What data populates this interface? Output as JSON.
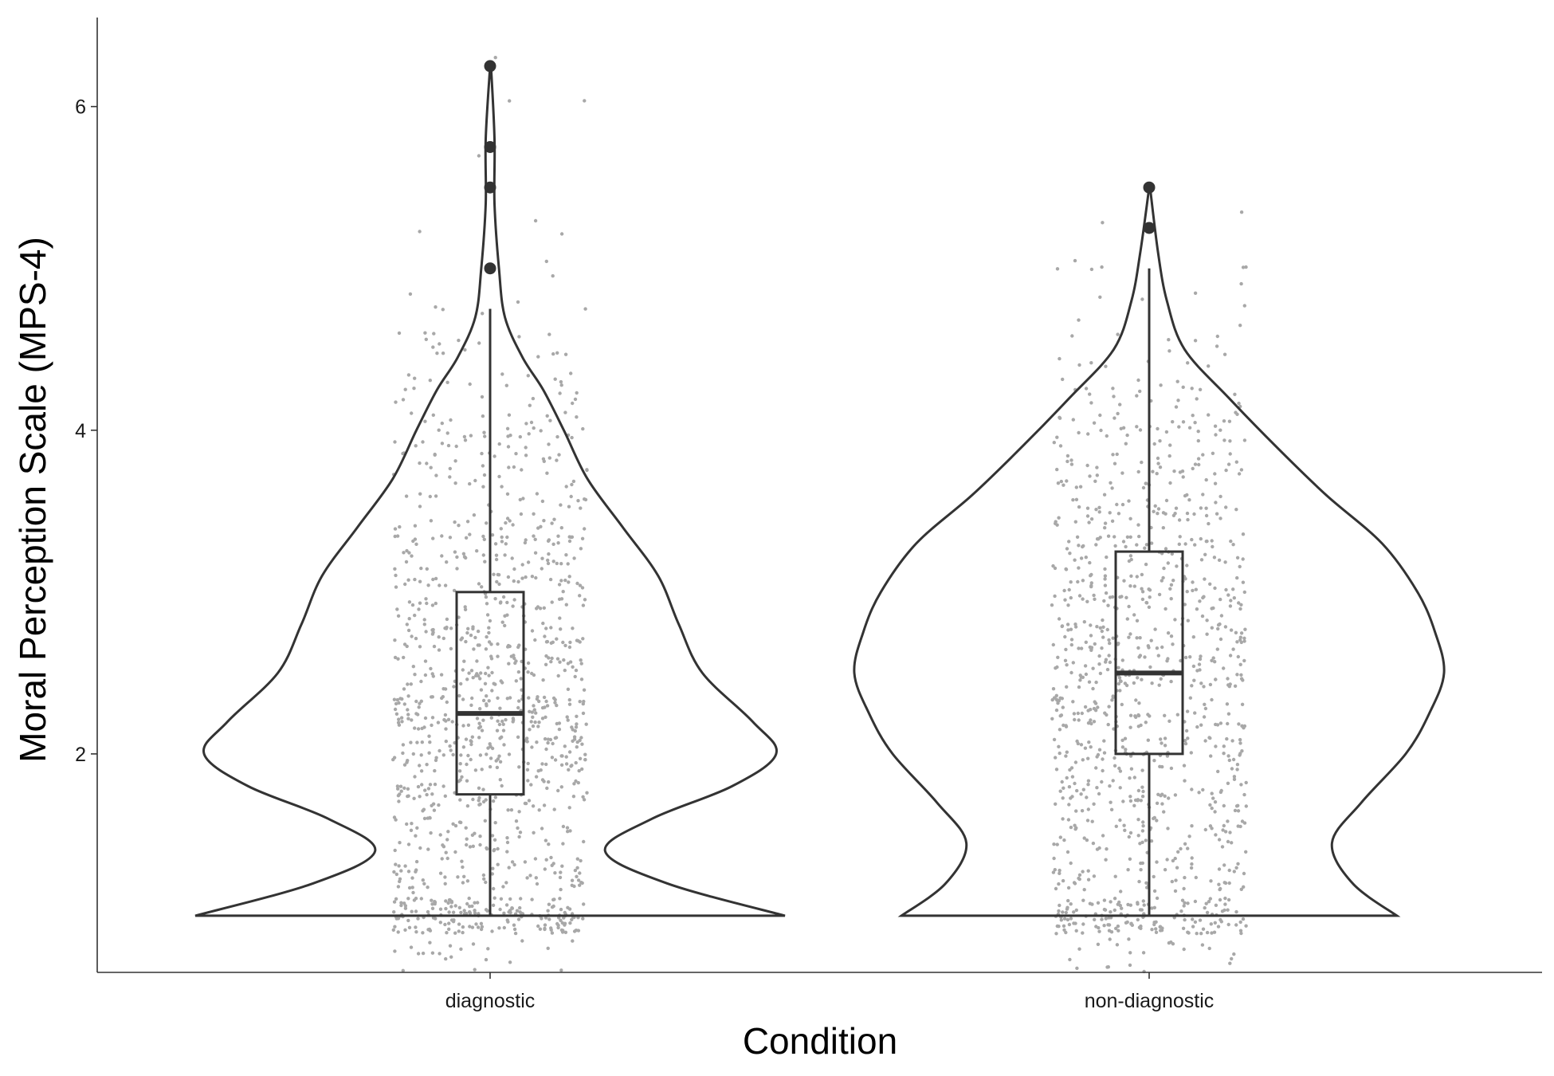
{
  "chart_data": {
    "type": "violin",
    "xlabel": "Condition",
    "ylabel": "Moral Perception Scale (MPS-4)",
    "categories": [
      "diagnostic",
      "non-diagnostic"
    ],
    "ylim": [
      0.65,
      6.55
    ],
    "yticks": [
      2,
      4,
      6
    ],
    "grid": false,
    "colors": {
      "outline": "#333333",
      "jitter": "#a8a8a8",
      "axis": "#333333"
    },
    "groups": [
      {
        "name": "diagnostic",
        "box": {
          "min": 1.0,
          "q1": 1.75,
          "median": 2.25,
          "q3": 3.0,
          "max": 4.75
        },
        "outliers": [
          5.0,
          5.5,
          5.75,
          6.25
        ],
        "density": [
          [
            1.0,
            1.0
          ],
          [
            1.2,
            0.6
          ],
          [
            1.4,
            0.39
          ],
          [
            1.6,
            0.55
          ],
          [
            1.8,
            0.82
          ],
          [
            2.0,
            0.97
          ],
          [
            2.2,
            0.89
          ],
          [
            2.5,
            0.72
          ],
          [
            2.8,
            0.64
          ],
          [
            3.1,
            0.57
          ],
          [
            3.4,
            0.45
          ],
          [
            3.7,
            0.33
          ],
          [
            4.0,
            0.25
          ],
          [
            4.25,
            0.18
          ],
          [
            4.45,
            0.11
          ],
          [
            4.7,
            0.05
          ],
          [
            5.0,
            0.03
          ],
          [
            5.4,
            0.015
          ],
          [
            5.8,
            0.015
          ],
          [
            6.25,
            0.003
          ]
        ],
        "jitter_points": 1150,
        "jitter_ymin": 0.83
      },
      {
        "name": "non-diagnostic",
        "box": {
          "min": 1.0,
          "q1": 2.0,
          "median": 2.5,
          "q3": 3.25,
          "max": 5.0
        },
        "outliers": [
          5.25,
          5.5
        ],
        "density": [
          [
            1.0,
            0.84
          ],
          [
            1.2,
            0.69
          ],
          [
            1.45,
            0.62
          ],
          [
            1.7,
            0.72
          ],
          [
            2.0,
            0.87
          ],
          [
            2.25,
            0.95
          ],
          [
            2.5,
            1.0
          ],
          [
            2.75,
            0.97
          ],
          [
            3.0,
            0.91
          ],
          [
            3.3,
            0.79
          ],
          [
            3.6,
            0.6
          ],
          [
            3.9,
            0.43
          ],
          [
            4.2,
            0.27
          ],
          [
            4.5,
            0.12
          ],
          [
            4.8,
            0.06
          ],
          [
            5.1,
            0.03
          ],
          [
            5.5,
            0.003
          ]
        ],
        "jitter_points": 1100,
        "jitter_ymin": 0.83
      }
    ]
  }
}
